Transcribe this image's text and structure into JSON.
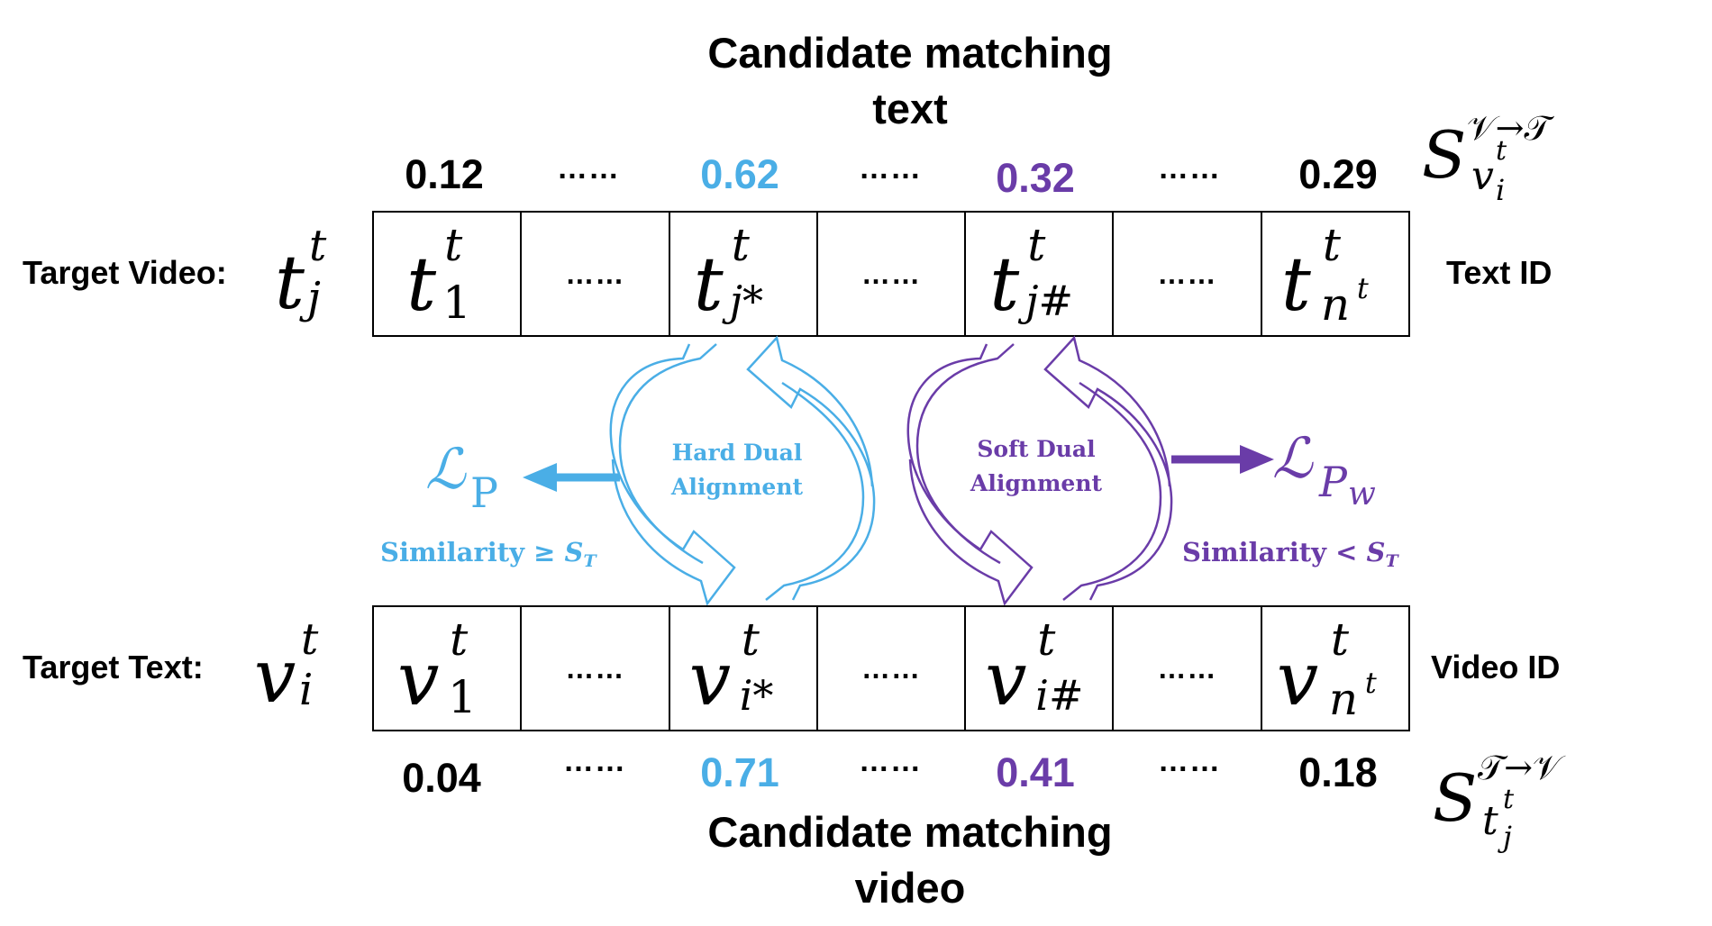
{
  "colors": {
    "blue": "#4AAEE6",
    "purple": "#6A3CA8",
    "black": "#000000"
  },
  "top_title": "Candidate matching\ntext",
  "bottom_title": "Candidate matching\nvideo",
  "top_scores": [
    "0.12",
    "0.62",
    "0.32",
    "0.29"
  ],
  "bottom_scores": [
    "0.04",
    "0.71",
    "0.41",
    "0.18"
  ],
  "ellipsis": "……",
  "row_labels": {
    "top": "Target Video:",
    "bottom": "Target Text:"
  },
  "row_symbols": {
    "top": {
      "base": "t",
      "sup": "t",
      "sub": "j"
    },
    "bottom": {
      "base": "v",
      "sup": "t",
      "sub": "i"
    }
  },
  "top_cells": [
    {
      "base": "t",
      "sup": "t",
      "sub": "1"
    },
    {
      "base": "t",
      "sup": "t",
      "sub": "j*"
    },
    {
      "base": "t",
      "sup": "t",
      "sub": "j#"
    },
    {
      "base": "t",
      "sup": "t",
      "sub": "n",
      "sub_sup": "t"
    }
  ],
  "bottom_cells": [
    {
      "base": "v",
      "sup": "t",
      "sub": "1"
    },
    {
      "base": "v",
      "sup": "t",
      "sub": "i*"
    },
    {
      "base": "v",
      "sup": "t",
      "sub": "i#"
    },
    {
      "base": "v",
      "sup": "t",
      "sub": "n",
      "sub_sup": "t"
    }
  ],
  "id_labels": {
    "top": "Text ID",
    "bottom": "Video ID"
  },
  "score_labels": {
    "top": {
      "base": "S",
      "sup": "𝒱→𝒯",
      "sub": "v",
      "sub_sup": "t",
      "sub_sub": "i"
    },
    "bottom": {
      "base": "S",
      "sup": "𝒯→𝒱",
      "sub": "t",
      "sub_sup": "t",
      "sub_sub": "j"
    }
  },
  "alignment": {
    "hard": {
      "label": "Hard Dual\nAlignment",
      "loss_base": "ℒ",
      "loss_sub": "P",
      "similarity": "Similarity ≥ ",
      "threshold": "S",
      "threshold_sub": "T"
    },
    "soft": {
      "label": "Soft Dual\nAlignment",
      "loss_base": "ℒ",
      "loss_sub": "P",
      "loss_sub_sub": "w",
      "similarity": "Similarity < ",
      "threshold": "S",
      "threshold_sub": "T"
    }
  }
}
